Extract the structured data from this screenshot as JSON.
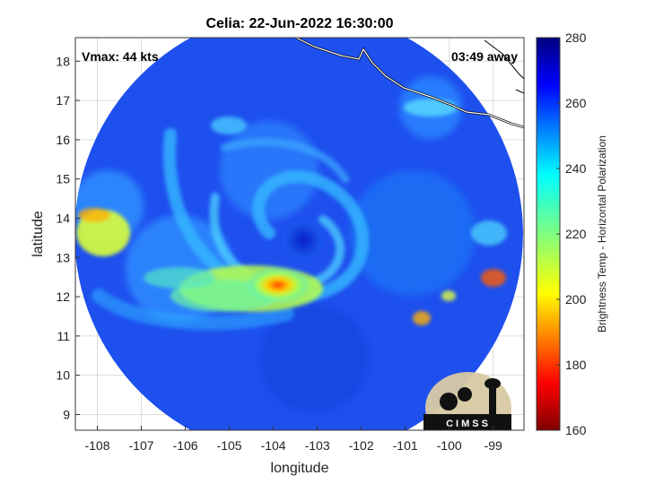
{
  "chart_data": {
    "type": "heatmap",
    "title": "Celia: 22-Jun-2022 16:30:00",
    "xlabel": "longitude",
    "ylabel": "latitude",
    "xlim": [
      -108.5,
      -98.3
    ],
    "ylim": [
      8.6,
      18.6
    ],
    "x_ticks": [
      -108,
      -107,
      -106,
      -105,
      -104,
      -103,
      -102,
      -101,
      -100,
      -99
    ],
    "y_ticks": [
      9,
      10,
      11,
      12,
      13,
      14,
      15,
      16,
      17,
      18
    ],
    "grid": true,
    "colorbar": {
      "label": "Brightness Temp - Horizontal Polarization",
      "range": [
        160,
        280
      ],
      "ticks": [
        160,
        180,
        200,
        220,
        240,
        260,
        280
      ],
      "colormap": "jet"
    },
    "annotations": {
      "vmax": "Vmax: 44 kts",
      "time_away": "03:49 away"
    },
    "storm_center": {
      "lon": -103.6,
      "lat": 13.1
    },
    "swath": {
      "center_lon": -103.4,
      "center_lat": 13.5,
      "radius_deg": 5.0
    },
    "logo_text": "CIMSS"
  }
}
